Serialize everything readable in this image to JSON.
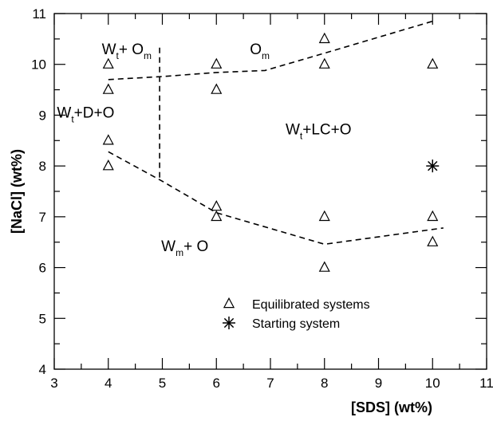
{
  "chart_data": {
    "type": "scatter",
    "xlabel": "[SDS] (wt%)",
    "ylabel": "[NaCl] (wt%)",
    "xlim": [
      3,
      11
    ],
    "ylim": [
      4,
      11
    ],
    "x_ticks": [
      3,
      4,
      5,
      6,
      7,
      8,
      9,
      10,
      11
    ],
    "y_ticks": [
      4,
      5,
      6,
      7,
      8,
      9,
      10,
      11
    ],
    "x_tick_labels": [
      "3",
      "4",
      "5",
      "6",
      "7",
      "8",
      "9",
      "10",
      "11"
    ],
    "y_tick_labels": [
      "4",
      "5",
      "6",
      "7",
      "8",
      "9",
      "10",
      "11"
    ],
    "grid": false,
    "legend_position": "bottom-center",
    "series": [
      {
        "name": "Equilibrated systems",
        "marker": "triangle",
        "points": [
          {
            "x": 4,
            "y": 10.0
          },
          {
            "x": 4,
            "y": 9.5
          },
          {
            "x": 4,
            "y": 8.5
          },
          {
            "x": 4,
            "y": 8.0
          },
          {
            "x": 6,
            "y": 10.0
          },
          {
            "x": 6,
            "y": 9.5
          },
          {
            "x": 6,
            "y": 7.2
          },
          {
            "x": 6,
            "y": 7.0
          },
          {
            "x": 8,
            "y": 10.5
          },
          {
            "x": 8,
            "y": 10.0
          },
          {
            "x": 8,
            "y": 7.0
          },
          {
            "x": 8,
            "y": 6.0
          },
          {
            "x": 10,
            "y": 10.0
          },
          {
            "x": 10,
            "y": 7.0
          },
          {
            "x": 10,
            "y": 6.5
          }
        ]
      },
      {
        "name": "Starting system",
        "marker": "asterisk",
        "points": [
          {
            "x": 10,
            "y": 8.0
          }
        ]
      }
    ],
    "boundaries": [
      {
        "name": "upper",
        "style": "dashed",
        "points": [
          [
            4,
            9.7
          ],
          [
            5,
            9.76
          ],
          [
            6,
            9.84
          ],
          [
            6.9,
            9.88
          ],
          [
            8,
            10.22
          ],
          [
            10,
            10.85
          ]
        ]
      },
      {
        "name": "vertical",
        "style": "dashed",
        "points": [
          [
            4.95,
            10.33
          ],
          [
            4.95,
            7.75
          ]
        ]
      },
      {
        "name": "lower",
        "style": "dashed",
        "points": [
          [
            4,
            8.28
          ],
          [
            5,
            7.7
          ],
          [
            6,
            7.08
          ],
          [
            8,
            6.46
          ],
          [
            10.2,
            6.78
          ]
        ]
      }
    ],
    "regions": [
      {
        "main": "W",
        "sub": "t",
        "rest": "+ O",
        "sub2": "m",
        "x": 3.88,
        "y": 10.2
      },
      {
        "main": "O",
        "sub": "m",
        "rest": "",
        "sub2": "",
        "x": 6.62,
        "y": 10.2
      },
      {
        "main": "W",
        "sub": "t",
        "rest": "+D+O",
        "sub2": "",
        "x": 3.05,
        "y": 8.95
      },
      {
        "main": "W",
        "sub": "t",
        "rest": "+LC+O",
        "sub2": "",
        "x": 7.28,
        "y": 8.62
      },
      {
        "main": "W",
        "sub": "m",
        "rest": "+ O",
        "sub2": "",
        "x": 4.98,
        "y": 6.32
      }
    ]
  }
}
